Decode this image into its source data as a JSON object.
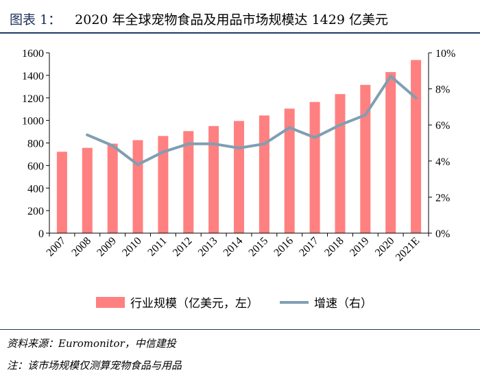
{
  "header": {
    "figure_label": "图表 1：",
    "title_text": "2020 年全球宠物食品及用品市场规模达 1429 亿美元"
  },
  "footer": {
    "source": "资料来源：Euromonitor，中信建投",
    "note": "注：该市场规模仅测算宠物食品与用品"
  },
  "colors": {
    "bar": "#ff8080",
    "line": "#7f9fb2",
    "rule": "#1f3864"
  },
  "chart_data": {
    "type": "bar",
    "title": "2020 年全球宠物食品及用品市场规模达 1429 亿美元",
    "categories": [
      "2007",
      "2008",
      "2009",
      "2010",
      "2011",
      "2012",
      "2013",
      "2014",
      "2015",
      "2016",
      "2017",
      "2018",
      "2019",
      "2020",
      "2021E"
    ],
    "series": [
      {
        "name": "行业规模（亿美元，左）",
        "type": "bar",
        "axis": "left",
        "values": [
          722,
          757,
          794,
          825,
          862,
          905,
          950,
          995,
          1044,
          1105,
          1164,
          1234,
          1315,
          1429,
          1536
        ]
      },
      {
        "name": "增速（右）",
        "type": "line",
        "axis": "right",
        "values": [
          null,
          5.45,
          4.85,
          3.8,
          4.5,
          4.95,
          4.95,
          4.72,
          4.95,
          5.85,
          5.3,
          6.0,
          6.55,
          8.7,
          7.5
        ]
      }
    ],
    "ylim_left": [
      0,
      1600
    ],
    "yticks_left": [
      0,
      200,
      400,
      600,
      800,
      1000,
      1200,
      1400,
      1600
    ],
    "ylim_right": [
      0,
      10
    ],
    "yticks_right": [
      "0%",
      "2%",
      "4%",
      "6%",
      "8%",
      "10%"
    ],
    "legend": [
      "行业规模（亿美元，左）",
      "增速（右）"
    ],
    "legend_position": "bottom"
  }
}
